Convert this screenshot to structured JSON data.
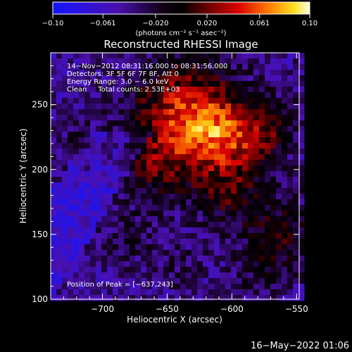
{
  "chart_data": {
    "type": "heatmap",
    "title": "Reconstructed RHESSI Image",
    "xlabel": "Heliocentric X (arcsec)",
    "ylabel": "Heliocentric Y (arcsec)",
    "xlim": [
      -740,
      -548
    ],
    "ylim": [
      100,
      290
    ],
    "xticks": [
      -700,
      -650,
      -600,
      -550
    ],
    "yticks": [
      100,
      150,
      200,
      250
    ],
    "xtick_labels": [
      "−700",
      "−650",
      "−600",
      "−550"
    ],
    "ytick_labels": [
      "100",
      "150",
      "200",
      "250"
    ],
    "colorbar": {
      "range": [
        -0.1,
        0.1
      ],
      "ticks": [
        -0.1,
        -0.061,
        -0.02,
        0.02,
        0.061,
        0.1
      ],
      "tick_labels": [
        "−0.10",
        "−0.061",
        "−0.020",
        "0.020",
        "0.061",
        "0.10"
      ],
      "unit_label": "(photons cm⁻² s⁻¹ asec⁻²)"
    },
    "annotations": {
      "line1": "14−Nov−2012 08:31:16.000 to 08:31:56.000",
      "line2": "Detectors: 3F 5F 6F 7F 8F, Att 0",
      "line3": "Energy Range: 3.0 − 6.0 keV",
      "line4": "Clean     Total counts: 2.53E+03",
      "peak": "Position of Peak = [−637,243]"
    },
    "peak_position": [
      -637,
      243
    ],
    "grid": false
  },
  "footer": {
    "timestamp": "16−May−2022 01:06"
  }
}
